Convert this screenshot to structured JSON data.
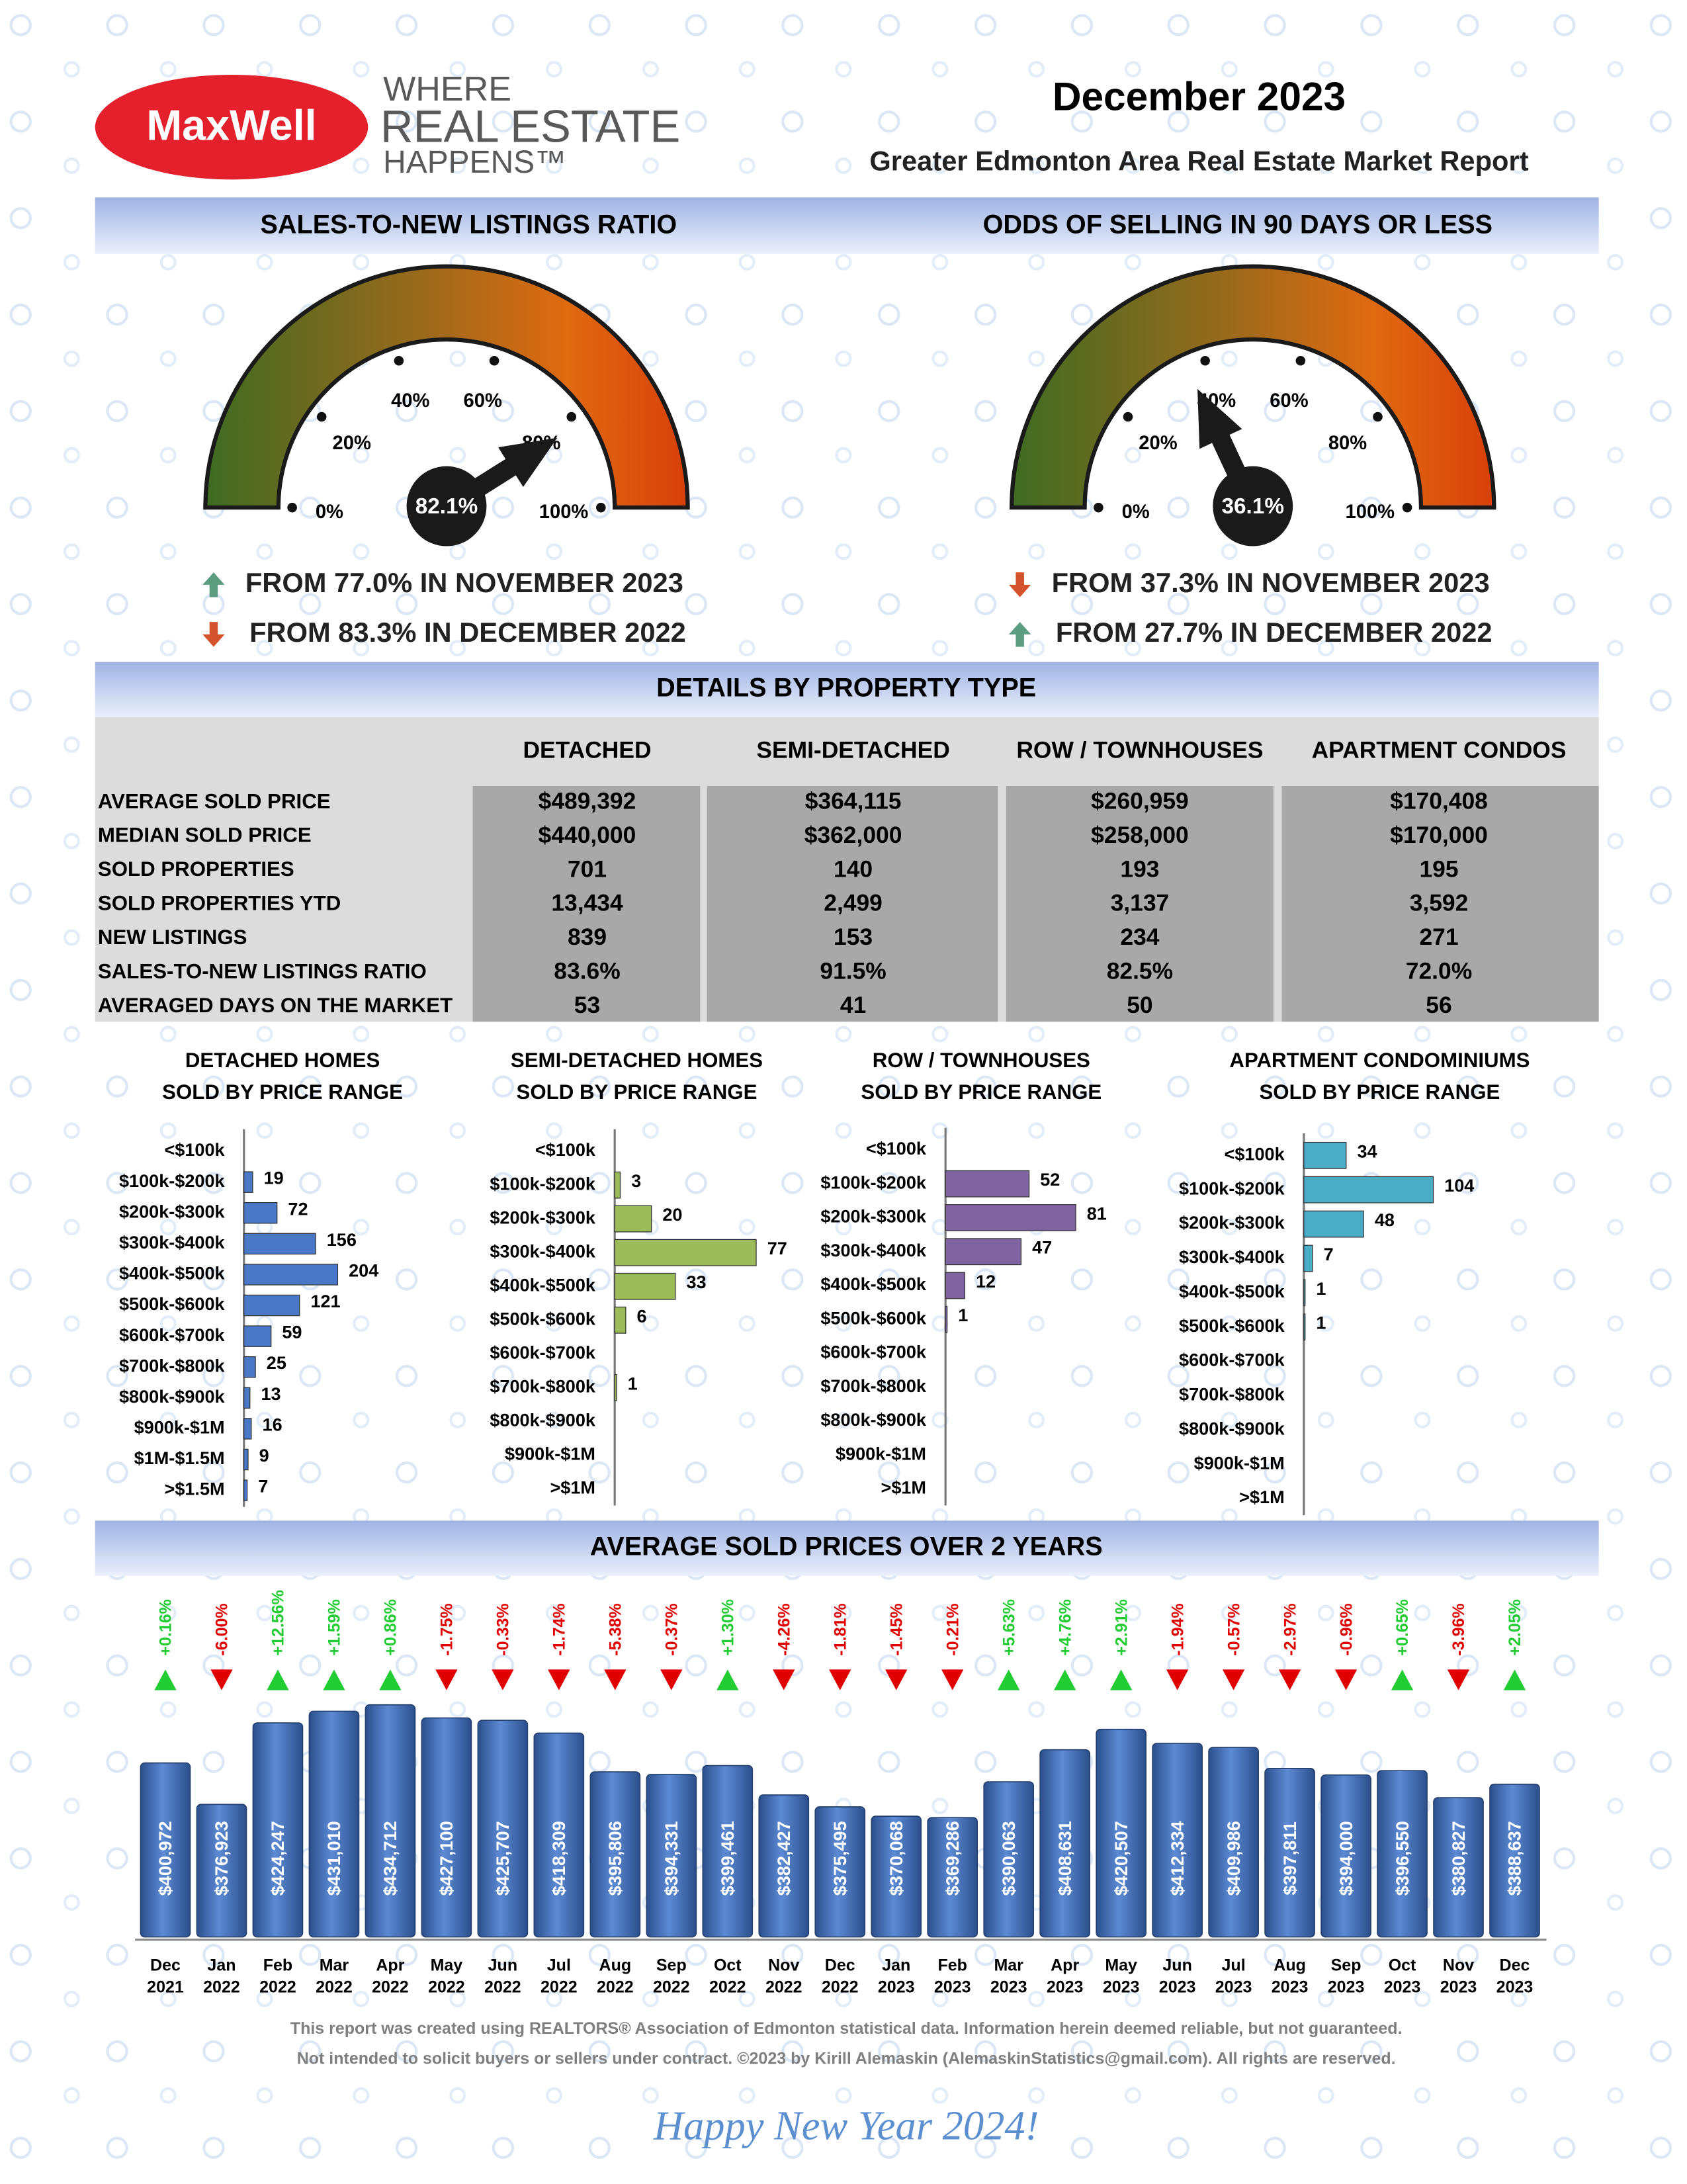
{
  "header": {
    "logo": "MaxWell",
    "tagline": [
      "WHERE",
      "REAL ESTATE",
      "HAPPENS™"
    ],
    "title": "December 2023",
    "subtitle": "Greater Edmonton Area Real Estate Market Report"
  },
  "chart_data": [
    {
      "type": "gauge",
      "title": "SALES-TO-NEW LISTINGS RATIO",
      "value": 82.1,
      "value_label": "82.1%",
      "ylim": [
        0,
        100
      ],
      "yticks": [
        {
          "value": 0,
          "label": "0%"
        },
        {
          "value": 20,
          "label": "20%"
        },
        {
          "value": 40,
          "label": "40%"
        },
        {
          "value": 60,
          "label": "60%"
        },
        {
          "value": 80,
          "label": "80%"
        },
        {
          "value": 100,
          "label": "100%"
        }
      ],
      "changes": [
        {
          "direction": "up",
          "text": "FROM 77.0% IN NOVEMBER 2023"
        },
        {
          "direction": "down",
          "text": "FROM 83.3% IN DECEMBER 2022"
        }
      ]
    },
    {
      "type": "gauge",
      "title": "ODDS OF SELLING IN 90 DAYS OR LESS",
      "value": 36.1,
      "value_label": "36.1%",
      "ylim": [
        0,
        100
      ],
      "yticks": [
        {
          "value": 0,
          "label": "0%"
        },
        {
          "value": 20,
          "label": "20%"
        },
        {
          "value": 40,
          "label": "40%"
        },
        {
          "value": 60,
          "label": "60%"
        },
        {
          "value": 80,
          "label": "80%"
        },
        {
          "value": 100,
          "label": "100%"
        }
      ],
      "changes": [
        {
          "direction": "down",
          "text": "FROM 37.3% IN NOVEMBER 2023"
        },
        {
          "direction": "up",
          "text": "FROM 27.7% IN DECEMBER 2022"
        }
      ]
    },
    {
      "type": "hbar",
      "title": "DETACHED HOMES",
      "subtitle": "SOLD BY PRICE RANGE",
      "color": "#4a78c8",
      "xlim": [
        0,
        420
      ],
      "categories": [
        "<$100k",
        "$100k-$200k",
        "$200k-$300k",
        "$300k-$400k",
        "$400k-$500k",
        "$500k-$600k",
        "$600k-$700k",
        "$700k-$800k",
        "$800k-$900k",
        "$900k-$1M",
        "$1M-$1.5M",
        ">$1.5M"
      ],
      "values": [
        null,
        19,
        72,
        156,
        204,
        121,
        59,
        25,
        13,
        16,
        9,
        7
      ]
    },
    {
      "type": "hbar",
      "title": "SEMI-DETACHED HOMES",
      "subtitle": "SOLD BY PRICE RANGE",
      "color": "#9bbb59",
      "xlim": [
        0,
        105
      ],
      "categories": [
        "<$100k",
        "$100k-$200k",
        "$200k-$300k",
        "$300k-$400k",
        "$400k-$500k",
        "$500k-$600k",
        "$600k-$700k",
        "$700k-$800k",
        "$800k-$900k",
        "$900k-$1M",
        ">$1M"
      ],
      "values": [
        null,
        3,
        20,
        77,
        33,
        6,
        null,
        1,
        null,
        null,
        null
      ]
    },
    {
      "type": "hbar",
      "title": "ROW / TOWNHOUSES",
      "subtitle": "SOLD BY PRICE RANGE",
      "color": "#8064a2",
      "xlim": [
        0,
        120
      ],
      "categories": [
        "<$100k",
        "$100k-$200k",
        "$200k-$300k",
        "$300k-$400k",
        "$400k-$500k",
        "$500k-$600k",
        "$600k-$700k",
        "$700k-$800k",
        "$800k-$900k",
        "$900k-$1M",
        ">$1M"
      ],
      "values": [
        null,
        52,
        81,
        47,
        12,
        1,
        null,
        null,
        null,
        null,
        null
      ]
    },
    {
      "type": "hbar",
      "title": "APARTMENT CONDOMINIUMS",
      "subtitle": "SOLD BY PRICE RANGE",
      "color": "#4bacc6",
      "xlim": [
        0,
        155
      ],
      "categories": [
        "<$100k",
        "$100k-$200k",
        "$200k-$300k",
        "$300k-$400k",
        "$400k-$500k",
        "$500k-$600k",
        "$600k-$700k",
        "$700k-$800k",
        "$800k-$900k",
        "$900k-$1M",
        ">$1M"
      ],
      "values": [
        34,
        104,
        48,
        7,
        1,
        1,
        null,
        null,
        null,
        null,
        null
      ]
    },
    {
      "type": "bar",
      "title": "AVERAGE SOLD PRICES OVER 2 YEARS",
      "color": "#4472c4",
      "ylim": [
        300000,
        450000
      ],
      "categories": [
        "Dec 2021",
        "Jan 2022",
        "Feb 2022",
        "Mar 2022",
        "Apr 2022",
        "May 2022",
        "Jun 2022",
        "Jul 2022",
        "Aug 2022",
        "Sep 2022",
        "Oct 2022",
        "Nov 2022",
        "Dec 2022",
        "Jan 2023",
        "Feb 2023",
        "Mar 2023",
        "Apr 2023",
        "May 2023",
        "Jun 2023",
        "Jul 2023",
        "Aug 2023",
        "Sep 2023",
        "Oct 2023",
        "Nov 2023",
        "Dec 2023"
      ],
      "values": [
        400972,
        376923,
        424247,
        431010,
        434712,
        427100,
        425707,
        418309,
        395806,
        394331,
        399461,
        382427,
        375495,
        370068,
        369286,
        390063,
        408631,
        420507,
        412334,
        409986,
        397811,
        394000,
        396550,
        380827,
        388637
      ],
      "value_labels": [
        "$400,972",
        "$376,923",
        "$424,247",
        "$431,010",
        "$434,712",
        "$427,100",
        "$425,707",
        "$418,309",
        "$395,806",
        "$394,331",
        "$399,461",
        "$382,427",
        "$375,495",
        "$370,068",
        "$369,286",
        "$390,063",
        "$408,631",
        "$420,507",
        "$412,334",
        "$409,986",
        "$397,811",
        "$394,000",
        "$396,550",
        "$380,827",
        "$388,637"
      ],
      "changes": [
        0.16,
        -6.0,
        12.56,
        1.59,
        0.86,
        -1.75,
        -0.33,
        -1.74,
        -5.38,
        -0.37,
        1.3,
        -4.26,
        -1.81,
        -1.45,
        -0.21,
        5.63,
        4.76,
        2.91,
        -1.94,
        -0.57,
        -2.97,
        -0.96,
        0.65,
        -3.96,
        2.05
      ],
      "change_labels": [
        "+0.16%",
        "-6.00%",
        "+12.56%",
        "+1.59%",
        "+0.86%",
        "-1.75%",
        "-0.33%",
        "-1.74%",
        "-5.38%",
        "-0.37%",
        "+1.30%",
        "-4.26%",
        "-1.81%",
        "-1.45%",
        "-0.21%",
        "+5.63%",
        "+4.76%",
        "+2.91%",
        "-1.94%",
        "-0.57%",
        "-2.97%",
        "-0.96%",
        "+0.65%",
        "-3.96%",
        "+2.05%"
      ]
    }
  ],
  "table": {
    "title": "DETAILS BY PROPERTY TYPE",
    "columns": [
      "DETACHED",
      "SEMI-DETACHED",
      "ROW / TOWNHOUSES",
      "APARTMENT CONDOS"
    ],
    "rows": [
      {
        "label": "AVERAGE SOLD PRICE",
        "values": [
          "$489,392",
          "$364,115",
          "$260,959",
          "$170,408"
        ]
      },
      {
        "label": "MEDIAN SOLD PRICE",
        "values": [
          "$440,000",
          "$362,000",
          "$258,000",
          "$170,000"
        ]
      },
      {
        "label": "SOLD PROPERTIES",
        "values": [
          "701",
          "140",
          "193",
          "195"
        ]
      },
      {
        "label": "SOLD PROPERTIES YTD",
        "values": [
          "13,434",
          "2,499",
          "3,137",
          "3,592"
        ]
      },
      {
        "label": "NEW LISTINGS",
        "values": [
          "839",
          "153",
          "234",
          "271"
        ]
      },
      {
        "label": "SALES-TO-NEW LISTINGS RATIO",
        "values": [
          "83.6%",
          "91.5%",
          "82.5%",
          "72.0%"
        ]
      },
      {
        "label": "AVERAGED DAYS ON THE MARKET",
        "values": [
          "53",
          "41",
          "50",
          "56"
        ]
      }
    ]
  },
  "footer": {
    "lines": [
      "This report was created using REALTORS® Association of Edmonton statistical data. Information herein deemed reliable, but not guaranteed.",
      "Not intended to solicit buyers or sellers under contract. ©2023 by Kirill Alemaskin (AlemaskinStatistics@gmail.com). All rights are reserved."
    ],
    "greeting": "Happy New Year 2024!"
  }
}
